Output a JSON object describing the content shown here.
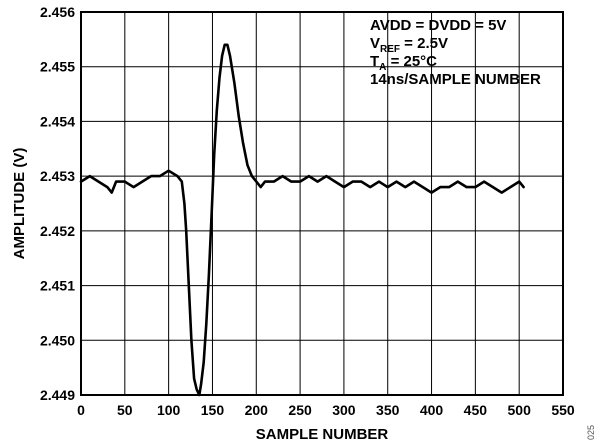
{
  "chart_data": {
    "type": "line",
    "title": "",
    "xlabel": "SAMPLE NUMBER",
    "ylabel": "AMPLITUDE (V)",
    "xlim": [
      0,
      550
    ],
    "ylim": [
      2.449,
      2.456
    ],
    "grid": true,
    "x_ticks": [
      "0",
      "50",
      "100",
      "150",
      "200",
      "250",
      "300",
      "350",
      "400",
      "450",
      "500",
      "550"
    ],
    "y_ticks": [
      "2.449",
      "2.450",
      "2.451",
      "2.452",
      "2.453",
      "2.454",
      "2.455",
      "2.456"
    ],
    "annotations": [
      {
        "main": "AVDD = DVDD = 5V",
        "sub": "",
        "rest": ""
      },
      {
        "main": "V",
        "sub": "REF",
        "rest": " = 2.5V"
      },
      {
        "main": "T",
        "sub": "A",
        "rest": " = 25°C"
      },
      {
        "main": "14ns/SAMPLE NUMBER",
        "sub": "",
        "rest": ""
      }
    ],
    "figure_id": "025",
    "line_color": "#000000",
    "series": [
      {
        "x": [
          0,
          10,
          20,
          30,
          35,
          40,
          50,
          60,
          70,
          80,
          90,
          100,
          110,
          115,
          118,
          120,
          123,
          126,
          129,
          132,
          135,
          137,
          140,
          143,
          146,
          149,
          152,
          155,
          158,
          161,
          164,
          167,
          170,
          175,
          180,
          185,
          190,
          195,
          200,
          205,
          210,
          220,
          230,
          240,
          250,
          260,
          270,
          280,
          290,
          300,
          310,
          320,
          330,
          340,
          350,
          360,
          370,
          380,
          390,
          400,
          410,
          420,
          430,
          440,
          450,
          460,
          470,
          480,
          490,
          500,
          505
        ],
        "y": [
          2.4529,
          2.453,
          2.4529,
          2.4528,
          2.4527,
          2.4529,
          2.4529,
          2.4528,
          2.4529,
          2.453,
          2.453,
          2.4531,
          2.453,
          2.4529,
          2.4525,
          2.452,
          2.451,
          2.45,
          2.4493,
          2.4491,
          2.449,
          2.4492,
          2.4496,
          2.4503,
          2.4512,
          2.4523,
          2.4534,
          2.4542,
          2.4548,
          2.4552,
          2.4554,
          2.4554,
          2.4552,
          2.4547,
          2.4541,
          2.4536,
          2.4532,
          2.453,
          2.4529,
          2.4528,
          2.4529,
          2.4529,
          2.453,
          2.4529,
          2.4529,
          2.453,
          2.4529,
          2.453,
          2.4529,
          2.4528,
          2.4529,
          2.4529,
          2.4528,
          2.4529,
          2.4528,
          2.4529,
          2.4528,
          2.4529,
          2.4528,
          2.4527,
          2.4528,
          2.4528,
          2.4529,
          2.4528,
          2.4528,
          2.4529,
          2.4528,
          2.4527,
          2.4528,
          2.4529,
          2.4528
        ]
      }
    ]
  }
}
